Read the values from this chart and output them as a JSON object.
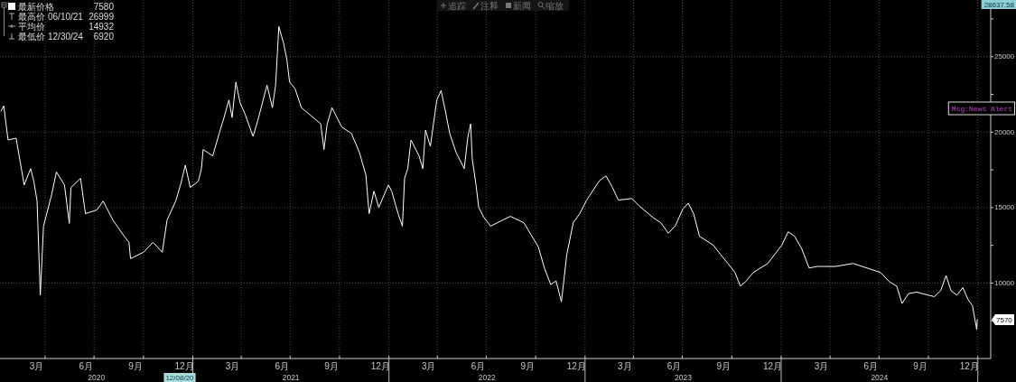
{
  "chart_data": {
    "type": "line",
    "x": [
      "2020-01-10",
      "2020-01-15",
      "2020-01-23",
      "2020-02-07",
      "2020-02-22",
      "2020-03-05",
      "2020-03-11",
      "2020-03-17",
      "2020-03-23",
      "2020-03-29",
      "2020-04-13",
      "2020-04-22",
      "2020-05-07",
      "2020-05-16",
      "2020-05-19",
      "2020-06-06",
      "2020-06-15",
      "2020-07-06",
      "2020-07-18",
      "2020-08-05",
      "2020-08-26",
      "2020-09-04",
      "2020-09-07",
      "2020-10-01",
      "2020-10-19",
      "2020-11-05",
      "2020-11-14",
      "2020-11-30",
      "2020-12-09",
      "2020-12-18",
      "2020-12-27",
      "2021-01-11",
      "2021-01-17",
      "2021-01-20",
      "2021-02-07",
      "2021-02-19",
      "2021-02-28",
      "2021-03-09",
      "2021-03-15",
      "2021-03-22",
      "2021-03-30",
      "2021-04-08",
      "2021-04-23",
      "2021-05-02",
      "2021-05-19",
      "2021-05-29",
      "2021-06-04",
      "2021-06-10",
      "2021-06-19",
      "2021-06-25",
      "2021-06-30",
      "2021-07-10",
      "2021-07-22",
      "2021-08-09",
      "2021-08-27",
      "2021-09-02",
      "2021-09-08",
      "2021-09-17",
      "2021-10-05",
      "2021-10-23",
      "2021-11-07",
      "2021-11-19",
      "2021-11-25",
      "2021-12-04",
      "2021-12-13",
      "2021-12-31",
      "2022-01-06",
      "2022-01-18",
      "2022-01-26",
      "2022-01-30",
      "2022-02-05",
      "2022-02-11",
      "2022-02-26",
      "2022-03-05",
      "2022-03-10",
      "2022-03-19",
      "2022-03-31",
      "2022-04-08",
      "2022-04-16",
      "2022-04-24",
      "2022-05-06",
      "2022-05-21",
      "2022-05-28",
      "2022-06-02",
      "2022-06-05",
      "2022-06-12",
      "2022-06-17",
      "2022-06-26",
      "2022-07-09",
      "2022-08-01",
      "2022-08-15",
      "2022-09-09",
      "2022-10-06",
      "2022-10-17",
      "2022-10-29",
      "2022-11-08",
      "2022-11-18",
      "2022-11-28",
      "2022-12-10",
      "2022-12-22",
      "2023-01-04",
      "2023-01-28",
      "2023-02-09",
      "2023-02-20",
      "2023-03-04",
      "2023-03-29",
      "2023-04-12",
      "2023-05-09",
      "2023-05-22",
      "2023-06-05",
      "2023-06-18",
      "2023-07-02",
      "2023-07-12",
      "2023-07-22",
      "2023-08-02",
      "2023-08-28",
      "2023-09-10",
      "2023-09-24",
      "2023-10-07",
      "2023-10-17",
      "2023-10-27",
      "2023-11-10",
      "2023-12-07",
      "2024-01-02",
      "2024-01-14",
      "2024-01-26",
      "2024-02-08",
      "2024-02-22",
      "2024-03-08",
      "2024-04-11",
      "2024-05-14",
      "2024-06-17",
      "2024-07-04",
      "2024-07-20",
      "2024-08-03",
      "2024-08-13",
      "2024-08-25",
      "2024-09-09",
      "2024-10-12",
      "2024-10-24",
      "2024-11-03",
      "2024-11-12",
      "2024-11-23",
      "2024-12-04",
      "2024-12-14",
      "2024-12-22",
      "2024-12-30",
      "2024-12-31"
    ],
    "series": [
      {
        "name": "最新价格",
        "color": "#ffffff",
        "values": [
          21400,
          21740,
          19480,
          19600,
          16500,
          17580,
          16740,
          15430,
          9200,
          13770,
          15850,
          17360,
          16500,
          13950,
          16330,
          16940,
          14600,
          14840,
          15430,
          14180,
          13110,
          12700,
          11620,
          12040,
          12700,
          12040,
          14180,
          15430,
          16500,
          17810,
          16330,
          16740,
          17580,
          18850,
          18430,
          19920,
          20970,
          22130,
          20970,
          23320,
          21930,
          21210,
          19720,
          20790,
          23110,
          21620,
          23110,
          27000,
          25870,
          24800,
          23320,
          22890,
          21620,
          21090,
          20550,
          18850,
          20550,
          21620,
          20340,
          19920,
          18650,
          17160,
          14600,
          16090,
          15020,
          16500,
          16090,
          14600,
          13770,
          16940,
          17580,
          19480,
          18430,
          17580,
          20140,
          19060,
          22130,
          22760,
          21400,
          19920,
          18650,
          17580,
          19720,
          20550,
          18240,
          16500,
          15020,
          14390,
          13770,
          14180,
          14420,
          14000,
          12400,
          11030,
          9900,
          10140,
          8760,
          11900,
          14000,
          14600,
          15500,
          16800,
          17100,
          16400,
          15500,
          15600,
          15100,
          14300,
          14000,
          13300,
          13800,
          14900,
          15300,
          14600,
          13100,
          12500,
          11900,
          11300,
          10700,
          9800,
          10100,
          10700,
          11300,
          12500,
          13400,
          13100,
          12300,
          11000,
          11100,
          11100,
          11300,
          10900,
          10700,
          10100,
          9800,
          8650,
          9300,
          9400,
          9100,
          9500,
          10500,
          9500,
          9200,
          9700,
          8900,
          8500,
          6920,
          7580
        ]
      }
    ],
    "xlim": [
      "2020-01-08",
      "2025-01-25"
    ],
    "ylim": [
      5000,
      28637.58
    ],
    "xticks": [
      {
        "value": "2020-03-16",
        "label": "3月"
      },
      {
        "value": "2020-04-01",
        "label": null
      },
      {
        "value": "2020-06-16",
        "label": "6月"
      },
      {
        "value": "2020-07-01",
        "label": null
      },
      {
        "value": "2020-09-16",
        "label": "9月"
      },
      {
        "value": "2020-10-01",
        "label": null
      },
      {
        "value": "2020-12-16",
        "label": "12月"
      },
      {
        "value": "2021-01-01",
        "label": null
      },
      {
        "value": "2021-03-16",
        "label": "3月"
      },
      {
        "value": "2021-04-01",
        "label": null
      },
      {
        "value": "2021-06-16",
        "label": "6月"
      },
      {
        "value": "2021-07-01",
        "label": null
      },
      {
        "value": "2021-09-16",
        "label": "9月"
      },
      {
        "value": "2021-10-01",
        "label": null
      },
      {
        "value": "2021-12-16",
        "label": "12月"
      },
      {
        "value": "2022-01-01",
        "label": null
      },
      {
        "value": "2022-03-16",
        "label": "3月"
      },
      {
        "value": "2022-04-01",
        "label": null
      },
      {
        "value": "2022-06-16",
        "label": "6月"
      },
      {
        "value": "2022-07-01",
        "label": null
      },
      {
        "value": "2022-09-16",
        "label": "9月"
      },
      {
        "value": "2022-10-01",
        "label": null
      },
      {
        "value": "2022-12-16",
        "label": "12月"
      },
      {
        "value": "2023-01-01",
        "label": null
      },
      {
        "value": "2023-03-16",
        "label": "3月"
      },
      {
        "value": "2023-04-01",
        "label": null
      },
      {
        "value": "2023-06-16",
        "label": "6月"
      },
      {
        "value": "2023-07-01",
        "label": null
      },
      {
        "value": "2023-09-16",
        "label": "9月"
      },
      {
        "value": "2023-10-01",
        "label": null
      },
      {
        "value": "2023-12-16",
        "label": "12月"
      },
      {
        "value": "2024-01-01",
        "label": null
      },
      {
        "value": "2024-03-16",
        "label": "3月"
      },
      {
        "value": "2024-04-01",
        "label": null
      },
      {
        "value": "2024-06-16",
        "label": "6月"
      },
      {
        "value": "2024-07-01",
        "label": null
      },
      {
        "value": "2024-09-16",
        "label": "9月"
      },
      {
        "value": "2024-10-01",
        "label": null
      },
      {
        "value": "2024-12-16",
        "label": "12月"
      },
      {
        "value": "2025-01-01",
        "label": null
      }
    ],
    "yticks": [
      {
        "value": 7500,
        "label": null
      },
      10000,
      {
        "value": 12500,
        "label": null
      },
      15000,
      {
        "value": 17500,
        "label": null
      },
      20000,
      {
        "value": 22500,
        "label": null
      },
      25000,
      {
        "value": 27500,
        "label": null
      }
    ],
    "grid": true,
    "legend": "top left",
    "annotations": [
      "7580",
      "最高价 06/10/21 26999",
      "平均价 14932",
      "最低价 12/30/24 6920",
      "28637.58",
      {
        "text": "7570",
        "x": "2024-12-31",
        "y": 7570
      },
      "12/08/20",
      "2020",
      "2021",
      "2022",
      "2023",
      "2024",
      "Msg:News Alert",
      "追踪",
      "注释",
      "新闻",
      "缩放"
    ]
  }
}
